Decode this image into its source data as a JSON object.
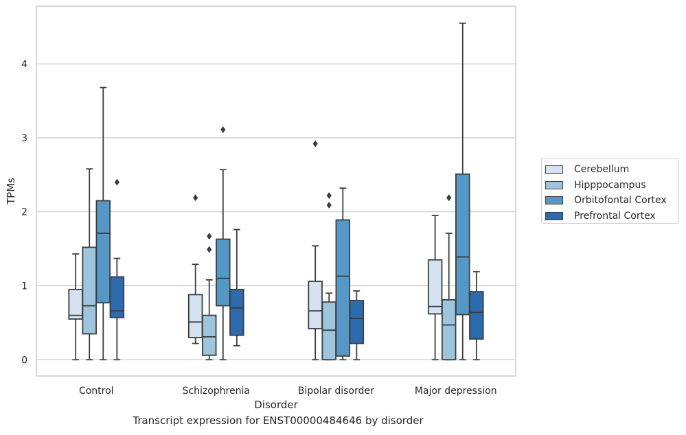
{
  "caption": "Transcript expression for ENST00000484646 by disorder",
  "chart_data": {
    "type": "box",
    "xlabel": "Disorder",
    "ylabel": "TPMs",
    "ylim": [
      -0.22,
      4.78
    ],
    "yticks": [
      0,
      1,
      2,
      3,
      4
    ],
    "categories": [
      "Control",
      "Schizophrenia",
      "Bipolar disorder",
      "Major depression"
    ],
    "legend_position": "right, outside plot",
    "grid": "horizontal",
    "series": [
      {
        "name": "Cerebellum",
        "color": "#d4e2f2",
        "boxes": [
          {
            "whisker_low": 0.0,
            "q1": 0.55,
            "median": 0.6,
            "q3": 0.95,
            "whisker_high": 1.43,
            "outliers": []
          },
          {
            "whisker_low": 0.22,
            "q1": 0.3,
            "median": 0.51,
            "q3": 0.88,
            "whisker_high": 1.29,
            "outliers": [
              2.19
            ]
          },
          {
            "whisker_low": 0.0,
            "q1": 0.42,
            "median": 0.66,
            "q3": 1.06,
            "whisker_high": 1.54,
            "outliers": [
              2.92
            ]
          },
          {
            "whisker_low": 0.0,
            "q1": 0.62,
            "median": 0.72,
            "q3": 1.35,
            "whisker_high": 1.95,
            "outliers": []
          }
        ]
      },
      {
        "name": "Hipppocampus",
        "color": "#9dc5de",
        "boxes": [
          {
            "whisker_low": 0.0,
            "q1": 0.35,
            "median": 0.73,
            "q3": 1.52,
            "whisker_high": 2.58,
            "outliers": []
          },
          {
            "whisker_low": 0.0,
            "q1": 0.06,
            "median": 0.31,
            "q3": 0.6,
            "whisker_high": 1.08,
            "outliers": [
              1.49,
              1.67
            ]
          },
          {
            "whisker_low": 0.0,
            "q1": 0.0,
            "median": 0.4,
            "q3": 0.78,
            "whisker_high": 0.9,
            "outliers": [
              2.09,
              2.22
            ]
          },
          {
            "whisker_low": 0.0,
            "q1": 0.0,
            "median": 0.47,
            "q3": 0.81,
            "whisker_high": 1.71,
            "outliers": [
              2.19
            ]
          }
        ]
      },
      {
        "name": "Orbitofontal Cortex",
        "color": "#5598c8",
        "boxes": [
          {
            "whisker_low": 0.0,
            "q1": 0.77,
            "median": 1.71,
            "q3": 2.15,
            "whisker_high": 3.68,
            "outliers": []
          },
          {
            "whisker_low": 0.0,
            "q1": 0.73,
            "median": 1.1,
            "q3": 1.63,
            "whisker_high": 2.57,
            "outliers": [
              3.11
            ]
          },
          {
            "whisker_low": 0.0,
            "q1": 0.05,
            "median": 1.13,
            "q3": 1.89,
            "whisker_high": 2.32,
            "outliers": []
          },
          {
            "whisker_low": 0.0,
            "q1": 0.61,
            "median": 1.39,
            "q3": 2.51,
            "whisker_high": 4.55,
            "outliers": []
          }
        ]
      },
      {
        "name": "Prefrontal Cortex",
        "color": "#2c6bad",
        "boxes": [
          {
            "whisker_low": 0.0,
            "q1": 0.57,
            "median": 0.66,
            "q3": 1.12,
            "whisker_high": 1.37,
            "outliers": [
              2.4
            ]
          },
          {
            "whisker_low": 0.19,
            "q1": 0.33,
            "median": 0.7,
            "q3": 0.95,
            "whisker_high": 1.76,
            "outliers": []
          },
          {
            "whisker_low": 0.0,
            "q1": 0.22,
            "median": 0.56,
            "q3": 0.8,
            "whisker_high": 0.93,
            "outliers": []
          },
          {
            "whisker_low": 0.0,
            "q1": 0.28,
            "median": 0.64,
            "q3": 0.92,
            "whisker_high": 1.19,
            "outliers": []
          }
        ]
      }
    ]
  }
}
